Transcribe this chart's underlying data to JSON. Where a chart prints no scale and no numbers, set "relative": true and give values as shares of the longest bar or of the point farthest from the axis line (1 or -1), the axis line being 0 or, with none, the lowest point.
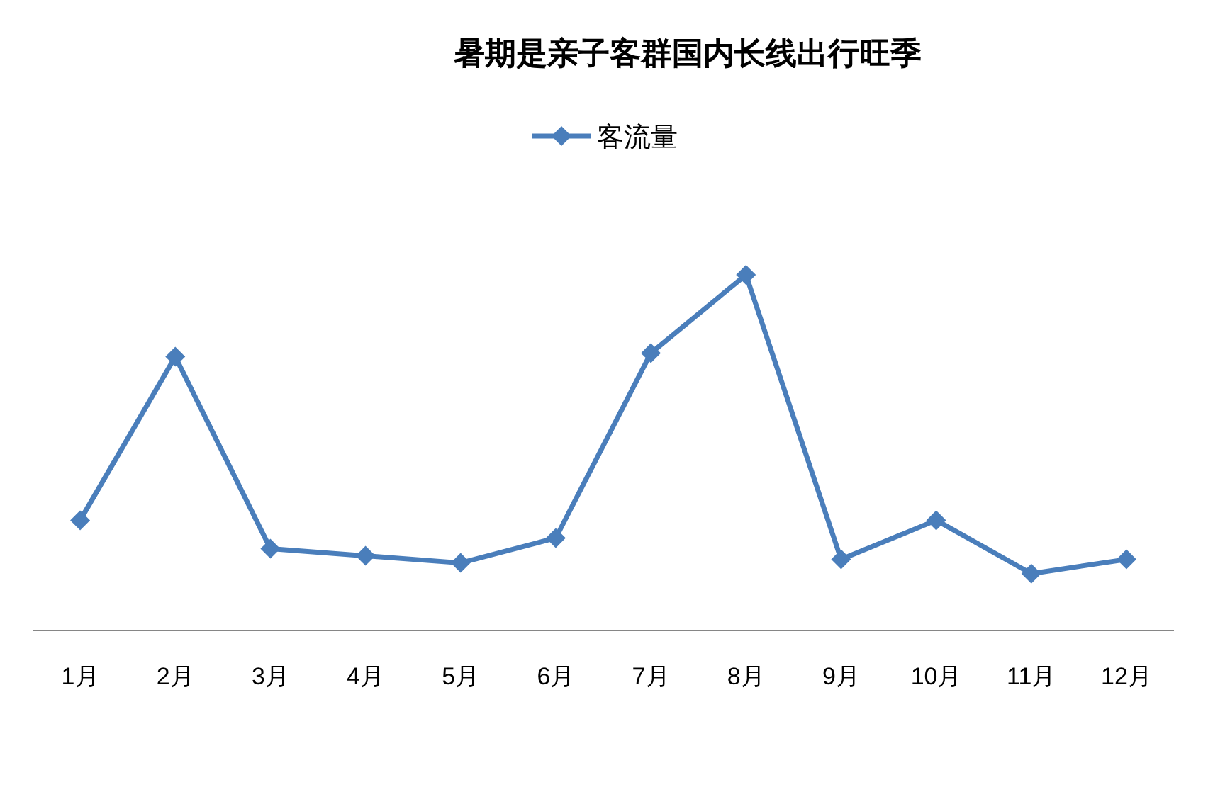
{
  "chart_data": {
    "type": "line",
    "title": "暑期是亲子客群国内长线出行旺季",
    "categories": [
      "1月",
      "2月",
      "3月",
      "4月",
      "5月",
      "6月",
      "7月",
      "8月",
      "9月",
      "10月",
      "11月",
      "12月"
    ],
    "series": [
      {
        "name": "客流量",
        "color": "#4a7ebb",
        "values": [
          0.31,
          0.77,
          0.23,
          0.21,
          0.19,
          0.26,
          0.78,
          1,
          0.2,
          0.31,
          0.16,
          0.2
        ]
      }
    ],
    "relative": true,
    "legend": "top",
    "marker": "diamond"
  }
}
